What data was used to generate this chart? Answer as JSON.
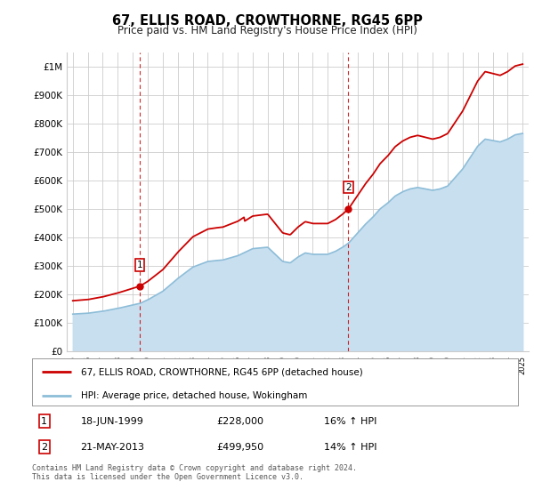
{
  "title": "67, ELLIS ROAD, CROWTHORNE, RG45 6PP",
  "subtitle": "Price paid vs. HM Land Registry's House Price Index (HPI)",
  "red_label": "67, ELLIS ROAD, CROWTHORNE, RG45 6PP (detached house)",
  "blue_label": "HPI: Average price, detached house, Wokingham",
  "transaction1": {
    "num": "1",
    "date": "18-JUN-1999",
    "price": "£228,000",
    "hpi": "16% ↑ HPI"
  },
  "transaction2": {
    "num": "2",
    "date": "21-MAY-2013",
    "price": "£499,950",
    "hpi": "14% ↑ HPI"
  },
  "footer": "Contains HM Land Registry data © Crown copyright and database right 2024.\nThis data is licensed under the Open Government Licence v3.0.",
  "ylim": [
    0,
    1050000
  ],
  "yticks": [
    0,
    100000,
    200000,
    300000,
    400000,
    500000,
    600000,
    700000,
    800000,
    900000,
    1000000
  ],
  "ytick_labels": [
    "£0",
    "£100K",
    "£200K",
    "£300K",
    "£400K",
    "£500K",
    "£600K",
    "£700K",
    "£800K",
    "£900K",
    "£1M"
  ],
  "transaction1_year": 1999.46,
  "transaction1_price": 228000,
  "transaction2_year": 2013.38,
  "transaction2_price": 499950,
  "red_color": "#cc0000",
  "blue_color": "#8dbdd8",
  "blue_fill_color": "#c8dff0",
  "dashed_color": "#cc0000",
  "grid_color": "#cccccc",
  "background_color": "#ffffff"
}
